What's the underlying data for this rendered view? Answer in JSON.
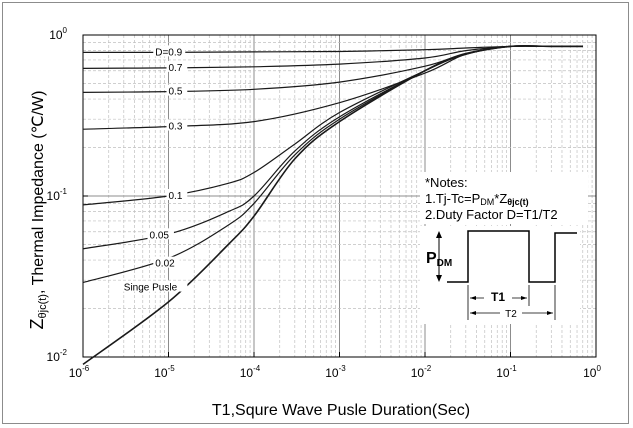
{
  "chart_data": {
    "type": "line",
    "x_scale": "log",
    "y_scale": "log",
    "xlim": [
      1e-06,
      1
    ],
    "ylim": [
      0.01,
      1
    ],
    "xlabel": "T1,Squre Wave Pusle Duration(Sec)",
    "ylabel": {
      "main": "Z",
      "sub": "θjc(t)",
      "rest": ", Thermal Impedance (℃/W)"
    },
    "x_ticks": [
      {
        "value": 1e-06,
        "base": "10",
        "exp": "-6"
      },
      {
        "value": 1e-05,
        "base": "10",
        "exp": "-5"
      },
      {
        "value": 0.0001,
        "base": "10",
        "exp": "-4"
      },
      {
        "value": 0.001,
        "base": "10",
        "exp": "-3"
      },
      {
        "value": 0.01,
        "base": "10",
        "exp": "-2"
      },
      {
        "value": 0.1,
        "base": "10",
        "exp": "-1"
      },
      {
        "value": 1,
        "base": "10",
        "exp": "0"
      }
    ],
    "y_ticks": [
      {
        "value": 0.01,
        "base": "10",
        "exp": "-2"
      },
      {
        "value": 0.1,
        "base": "10",
        "exp": "-1"
      },
      {
        "value": 1,
        "base": "10",
        "exp": "0"
      }
    ],
    "grid": true,
    "series": [
      {
        "name": "D=0.9",
        "x": [
          1e-06,
          1e-05,
          0.0001,
          0.001,
          0.01,
          0.03,
          0.1,
          0.3,
          0.7
        ],
        "y": [
          0.78,
          0.78,
          0.785,
          0.79,
          0.81,
          0.83,
          0.85,
          0.85,
          0.85
        ]
      },
      {
        "name": "0.7",
        "x": [
          1e-06,
          1e-05,
          0.0001,
          0.001,
          0.01,
          0.03,
          0.1,
          0.3,
          0.7
        ],
        "y": [
          0.62,
          0.625,
          0.635,
          0.66,
          0.72,
          0.8,
          0.85,
          0.85,
          0.85
        ]
      },
      {
        "name": "0.5",
        "x": [
          1e-06,
          1e-05,
          0.0001,
          0.001,
          0.01,
          0.03,
          0.1,
          0.3,
          0.7
        ],
        "y": [
          0.44,
          0.445,
          0.46,
          0.51,
          0.64,
          0.77,
          0.85,
          0.85,
          0.85
        ]
      },
      {
        "name": "0.3",
        "x": [
          1e-06,
          1e-05,
          0.0001,
          0.001,
          0.01,
          0.03,
          0.1,
          0.3,
          0.7
        ],
        "y": [
          0.26,
          0.27,
          0.29,
          0.38,
          0.58,
          0.76,
          0.85,
          0.85,
          0.85
        ]
      },
      {
        "name": "0.1",
        "x": [
          1e-06,
          1e-05,
          5e-05,
          0.0001,
          0.0003,
          0.001,
          0.01,
          0.03,
          0.1,
          0.3,
          0.7
        ],
        "y": [
          0.088,
          0.1,
          0.12,
          0.14,
          0.21,
          0.33,
          0.6,
          0.76,
          0.85,
          0.85,
          0.85
        ]
      },
      {
        "name": "0.05",
        "x": [
          1e-06,
          1e-05,
          5e-05,
          0.0001,
          0.0003,
          0.001,
          0.01,
          0.03,
          0.1,
          0.3,
          0.7
        ],
        "y": [
          0.047,
          0.058,
          0.08,
          0.1,
          0.19,
          0.31,
          0.6,
          0.76,
          0.85,
          0.85,
          0.85
        ]
      },
      {
        "name": "0.02",
        "x": [
          1e-06,
          1e-05,
          5e-05,
          0.0001,
          0.0003,
          0.001,
          0.01,
          0.03,
          0.1,
          0.3,
          0.7
        ],
        "y": [
          0.029,
          0.041,
          0.066,
          0.09,
          0.18,
          0.3,
          0.6,
          0.76,
          0.85,
          0.85,
          0.85
        ]
      },
      {
        "name": "Singe Pusle",
        "x": [
          1e-06,
          1e-05,
          5e-05,
          0.0001,
          0.0003,
          0.001,
          0.01,
          0.03,
          0.1,
          0.3,
          0.7
        ],
        "y": [
          0.009,
          0.022,
          0.05,
          0.075,
          0.17,
          0.29,
          0.6,
          0.76,
          0.85,
          0.85,
          0.85
        ]
      }
    ],
    "curve_labels": [
      {
        "text": "D=0.9",
        "x": 7e-06,
        "y": 0.78
      },
      {
        "text": "0.7",
        "x": 1e-05,
        "y": 0.625
      },
      {
        "text": "0.5",
        "x": 1e-05,
        "y": 0.445
      },
      {
        "text": "0.3",
        "x": 1e-05,
        "y": 0.27
      },
      {
        "text": "0.1",
        "x": 1e-05,
        "y": 0.1
      },
      {
        "text": "0.05",
        "x": 6e-06,
        "y": 0.057
      },
      {
        "text": "0.02",
        "x": 7e-06,
        "y": 0.038
      },
      {
        "text": "Singe Pusle",
        "x": 3e-06,
        "y": 0.027
      }
    ],
    "notes": {
      "title": "*Notes:",
      "line1": {
        "pre": "1.Tj-Tc=P",
        "sub1": "DM",
        "mid": "*Z",
        "sub2": "θjc(t)"
      },
      "line2": "2.Duty Factor D=T1/T2"
    },
    "inset": {
      "p_label": "P",
      "p_sub": "DM",
      "t1_label": "T1",
      "t2_label": "T2"
    },
    "colors": {
      "curve": "#1a1a1a",
      "grid_major": "#8c8c8c",
      "grid_minor": "#c0c0c0",
      "frame": "#8c8c8c"
    }
  }
}
